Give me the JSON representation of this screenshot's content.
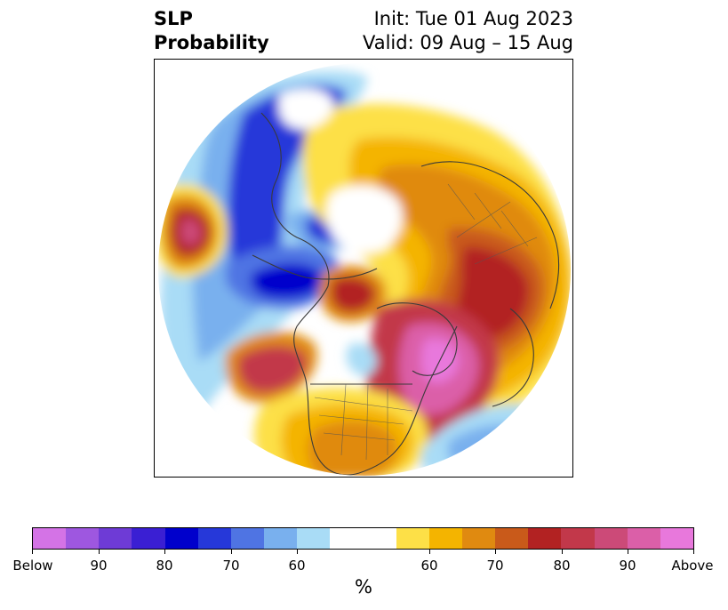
{
  "title": {
    "left_line1": "SLP",
    "left_line2": "Probability",
    "right_line1": "Init: Tue 01 Aug 2023",
    "right_line2": "Valid: 09 Aug – 15 Aug"
  },
  "map": {
    "projection": "north-polar-stereographic",
    "variable": "SLP probability"
  },
  "colorbar": {
    "unit": "%",
    "below_colors": [
      "#d473e6",
      "#9e57e0",
      "#6e3bd6",
      "#3a1fd3",
      "#0000cc",
      "#2638d9",
      "#4f74e3",
      "#79b0ee",
      "#a9dcf6"
    ],
    "neutral_color": "#ffffff",
    "above_colors": [
      "#fde047",
      "#f4b400",
      "#e08a10",
      "#c95a1a",
      "#b22222",
      "#c2384a",
      "#cc4a78",
      "#db5fa8",
      "#e878dc"
    ],
    "tick_labels": [
      "Below",
      "90",
      "80",
      "70",
      "60",
      "60",
      "70",
      "80",
      "90",
      "Above"
    ]
  }
}
